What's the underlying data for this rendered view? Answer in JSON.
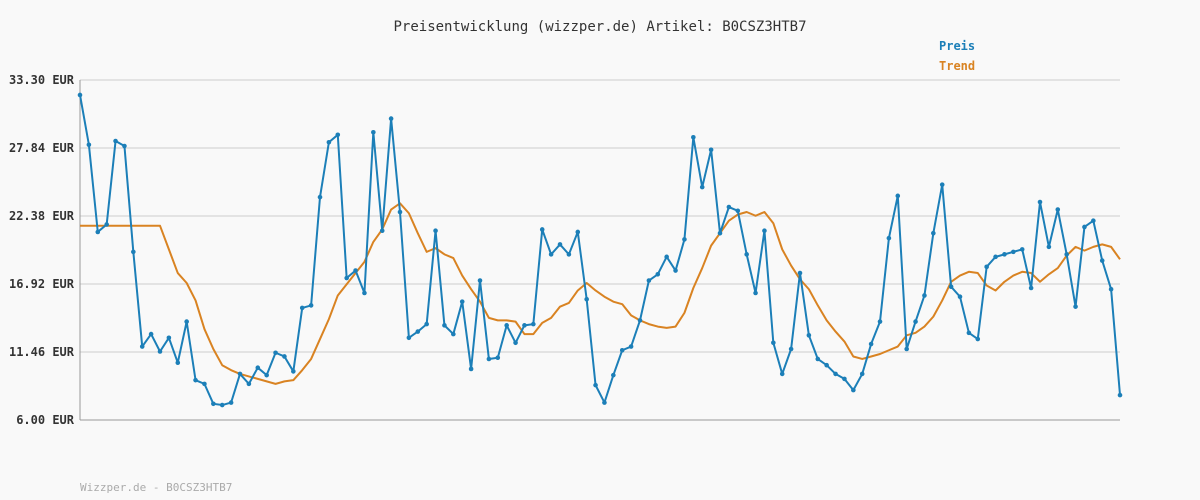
{
  "chart_data": {
    "type": "line",
    "title": "Preisentwicklung (wizzper.de) Artikel: B0CSZ3HTB7",
    "legend": [
      "Preis",
      "Trend"
    ],
    "legend_position": "top-right",
    "footer": "Wizzper.de - B0CSZ3HTB7",
    "y_ticks": [
      "33.30 EUR",
      "27.84 EUR",
      "22.38 EUR",
      "16.92 EUR",
      "11.46 EUR",
      "6.00 EUR"
    ],
    "ylim": [
      6.0,
      33.3
    ],
    "grid": true,
    "colors": {
      "preis": "#1c7fb8",
      "trend": "#d98322",
      "grid": "#e3e3e3",
      "axis": "#999999"
    },
    "series": [
      {
        "name": "Preis",
        "values": [
          32.1,
          28.1,
          21.1,
          21.7,
          28.4,
          28.0,
          19.5,
          11.9,
          12.9,
          11.5,
          12.6,
          10.6,
          13.9,
          9.2,
          8.9,
          7.3,
          7.2,
          7.4,
          9.7,
          8.9,
          10.2,
          9.6,
          11.4,
          11.1,
          9.9,
          15.0,
          15.2,
          23.9,
          28.3,
          28.9,
          17.4,
          18.0,
          16.2,
          29.1,
          21.2,
          30.2,
          22.7,
          12.6,
          13.1,
          13.7,
          21.2,
          13.6,
          12.9,
          15.5,
          10.1,
          17.2,
          10.9,
          11.0,
          13.6,
          12.2,
          13.6,
          13.7,
          21.3,
          19.3,
          20.1,
          19.3,
          21.1,
          15.7,
          8.8,
          7.4,
          9.6,
          11.6,
          11.9,
          14.0,
          17.2,
          17.7,
          19.1,
          18.0,
          20.5,
          28.7,
          24.7,
          27.7,
          21.0,
          23.1,
          22.8,
          19.3,
          16.2,
          21.2,
          12.2,
          9.7,
          11.7,
          17.8,
          12.8,
          10.9,
          10.4,
          9.7,
          9.3,
          8.4,
          9.7,
          12.1,
          13.9,
          20.6,
          24.0,
          11.7,
          13.9,
          16.0,
          21.0,
          24.9,
          16.7,
          15.9,
          13.0,
          12.5,
          18.3,
          19.1,
          19.3,
          19.5,
          19.7,
          16.6,
          23.5,
          19.9,
          22.9,
          19.3,
          15.1,
          21.5,
          22.0,
          18.8,
          16.5,
          8.0
        ]
      },
      {
        "name": "Trend",
        "values": [
          21.6,
          21.6,
          21.6,
          21.6,
          21.6,
          21.6,
          21.6,
          21.6,
          21.6,
          21.6,
          19.7,
          17.8,
          17.0,
          15.6,
          13.3,
          11.7,
          10.4,
          10.0,
          9.7,
          9.5,
          9.3,
          9.1,
          8.9,
          9.1,
          9.2,
          10.0,
          10.9,
          12.5,
          14.1,
          16.0,
          16.9,
          17.8,
          18.7,
          20.3,
          21.3,
          22.9,
          23.4,
          22.6,
          21.0,
          19.5,
          19.8,
          19.3,
          19.0,
          17.6,
          16.5,
          15.5,
          14.2,
          14.0,
          14.0,
          13.9,
          12.9,
          12.9,
          13.8,
          14.2,
          15.1,
          15.4,
          16.4,
          17.0,
          16.4,
          15.9,
          15.5,
          15.3,
          14.4,
          14.0,
          13.7,
          13.5,
          13.4,
          13.5,
          14.6,
          16.6,
          18.2,
          20.0,
          21.0,
          22.0,
          22.5,
          22.7,
          22.4,
          22.7,
          21.8,
          19.7,
          18.4,
          17.3,
          16.5,
          15.2,
          14.0,
          13.1,
          12.3,
          11.1,
          10.9,
          11.1,
          11.3,
          11.6,
          11.9,
          12.8,
          13.0,
          13.5,
          14.3,
          15.6,
          17.1,
          17.6,
          17.9,
          17.8,
          16.8,
          16.4,
          17.1,
          17.6,
          17.9,
          17.8,
          17.1,
          17.7,
          18.2,
          19.2,
          19.9,
          19.6,
          19.9,
          20.1,
          19.9,
          18.9
        ]
      }
    ]
  }
}
